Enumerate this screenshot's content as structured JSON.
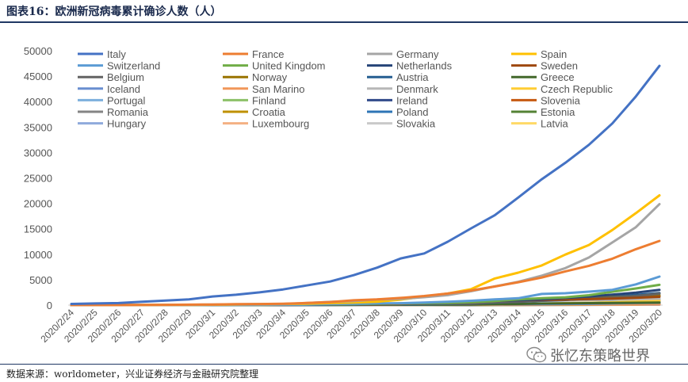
{
  "figure_title": "图表16：欧洲新冠病毒累计确诊人数（人）",
  "source": "数据来源：worldometer，兴业证券经济与金融研究院整理",
  "watermark": "张忆东策略世界",
  "chart_data": {
    "type": "line",
    "title": "",
    "xlabel": "",
    "ylabel": "",
    "ylim": [
      0,
      50000
    ],
    "yticks": [
      "0",
      "5000",
      "10000",
      "15000",
      "20000",
      "25000",
      "30000",
      "35000",
      "40000",
      "45000",
      "50000"
    ],
    "grid": false,
    "legend_position": "top",
    "x": [
      "2020/2/24",
      "2020/2/25",
      "2020/2/26",
      "2020/2/27",
      "2020/2/28",
      "2020/2/29",
      "2020/3/1",
      "2020/3/2",
      "2020/3/3",
      "2020/3/4",
      "2020/3/5",
      "2020/3/6",
      "2020/3/7",
      "2020/3/8",
      "2020/3/9",
      "2020/3/10",
      "2020/3/11",
      "2020/3/12",
      "2020/3/13",
      "2020/3/14",
      "2020/3/15",
      "2020/3/16",
      "2020/3/17",
      "2020/3/18",
      "2020/3/19",
      "2020/3/20"
    ],
    "series": [
      {
        "name": "Italy",
        "color": "#4472C4",
        "values": [
          229,
          322,
          400,
          650,
          888,
          1128,
          1694,
          2036,
          2502,
          3089,
          3858,
          4636,
          5883,
          7375,
          9172,
          10149,
          12462,
          15113,
          17660,
          21157,
          24747,
          27980,
          31506,
          35713,
          41035,
          47021
        ]
      },
      {
        "name": "France",
        "color": "#ED7D31",
        "values": [
          12,
          12,
          17,
          38,
          57,
          100,
          130,
          191,
          212,
          285,
          423,
          613,
          949,
          1126,
          1412,
          1784,
          2281,
          2876,
          3661,
          4499,
          5423,
          6633,
          7730,
          9134,
          10995,
          12612
        ]
      },
      {
        "name": "Germany",
        "color": "#A5A5A5",
        "values": [
          16,
          16,
          21,
          26,
          53,
          66,
          117,
          150,
          188,
          240,
          400,
          639,
          795,
          1112,
          1224,
          1565,
          1966,
          2745,
          3675,
          4585,
          5795,
          7272,
          9367,
          12327,
          15320,
          19848
        ]
      },
      {
        "name": "Spain",
        "color": "#FFC000",
        "values": [
          2,
          6,
          13,
          15,
          32,
          45,
          84,
          120,
          165,
          222,
          259,
          400,
          500,
          673,
          1073,
          1695,
          2277,
          3146,
          5232,
          6391,
          7798,
          9942,
          11826,
          14769,
          18077,
          21571
        ]
      },
      {
        "name": "Switzerland",
        "color": "#5B9BD5",
        "values": [
          0,
          1,
          1,
          8,
          8,
          18,
          27,
          42,
          56,
          90,
          114,
          214,
          268,
          337,
          374,
          491,
          652,
          858,
          1125,
          1359,
          2200,
          2330,
          2650,
          3010,
          4075,
          5615
        ]
      },
      {
        "name": "United Kingdom",
        "color": "#70AD47",
        "values": [
          13,
          13,
          13,
          15,
          20,
          23,
          36,
          40,
          51,
          85,
          115,
          163,
          206,
          273,
          321,
          382,
          456,
          590,
          798,
          1140,
          1372,
          1543,
          1950,
          2626,
          3269,
          3983
        ]
      },
      {
        "name": "Netherlands",
        "color": "#264478",
        "values": [
          0,
          0,
          0,
          1,
          1,
          6,
          10,
          18,
          24,
          38,
          82,
          128,
          188,
          265,
          321,
          382,
          503,
          614,
          804,
          959,
          1135,
          1413,
          1705,
          2051,
          2460,
          2994
        ]
      },
      {
        "name": "Sweden",
        "color": "#9E480E",
        "values": [
          0,
          0,
          1,
          1,
          7,
          12,
          14,
          15,
          30,
          52,
          94,
          137,
          161,
          203,
          248,
          355,
          500,
          599,
          814,
          961,
          1022,
          1103,
          1190,
          1279,
          1439,
          1639
        ]
      },
      {
        "name": "Belgium",
        "color": "#636363",
        "values": [
          1,
          1,
          1,
          1,
          1,
          1,
          2,
          8,
          13,
          23,
          50,
          109,
          169,
          200,
          239,
          267,
          314,
          314,
          559,
          689,
          886,
          1058,
          1243,
          1486,
          1795,
          2257
        ]
      },
      {
        "name": "Norway",
        "color": "#997300",
        "values": [
          0,
          0,
          1,
          1,
          6,
          15,
          19,
          25,
          32,
          56,
          87,
          108,
          147,
          176,
          205,
          400,
          598,
          702,
          996,
          1090,
          1221,
          1333,
          1463,
          1550,
          1746,
          1914
        ]
      },
      {
        "name": "Austria",
        "color": "#255E91",
        "values": [
          0,
          2,
          2,
          3,
          3,
          9,
          14,
          18,
          21,
          29,
          41,
          55,
          79,
          104,
          131,
          182,
          246,
          302,
          504,
          655,
          860,
          1018,
          1332,
          1646,
          2013,
          2388
        ]
      },
      {
        "name": "Greece",
        "color": "#43682B",
        "values": [
          0,
          0,
          1,
          3,
          4,
          7,
          7,
          7,
          7,
          9,
          31,
          45,
          66,
          73,
          84,
          89,
          99,
          117,
          190,
          228,
          331,
          352,
          387,
          418,
          464,
          495
        ]
      },
      {
        "name": "Iceland",
        "color": "#698ED0",
        "values": [
          0,
          0,
          0,
          0,
          1,
          1,
          6,
          11,
          16,
          26,
          37,
          45,
          50,
          60,
          69,
          85,
          103,
          134,
          156,
          171,
          180,
          220,
          250,
          330,
          409,
          473
        ]
      },
      {
        "name": "San Marino",
        "color": "#F1975A",
        "values": [
          0,
          0,
          0,
          1,
          1,
          1,
          1,
          8,
          10,
          16,
          21,
          23,
          36,
          36,
          51,
          62,
          69,
          80,
          80,
          101,
          109,
          109,
          119,
          119,
          144,
          144
        ]
      },
      {
        "name": "Denmark",
        "color": "#B7B7B7",
        "values": [
          0,
          0,
          0,
          1,
          1,
          1,
          3,
          4,
          6,
          10,
          15,
          23,
          31,
          35,
          90,
          262,
          442,
          615,
          801,
          827,
          864,
          914,
          977,
          1057,
          1151,
          1255
        ]
      },
      {
        "name": "Czech Republic",
        "color": "#FFCD33",
        "values": [
          0,
          0,
          0,
          0,
          0,
          0,
          3,
          3,
          5,
          5,
          8,
          19,
          26,
          32,
          38,
          63,
          94,
          116,
          141,
          189,
          298,
          383,
          450,
          560,
          765,
          889
        ]
      },
      {
        "name": "Portugal",
        "color": "#7CAFDD",
        "values": [
          0,
          0,
          0,
          0,
          0,
          0,
          0,
          2,
          4,
          6,
          9,
          13,
          21,
          30,
          39,
          41,
          59,
          78,
          112,
          169,
          245,
          331,
          448,
          642,
          785,
          1020
        ]
      },
      {
        "name": "Finland",
        "color": "#8CC168",
        "values": [
          0,
          0,
          1,
          2,
          2,
          3,
          6,
          6,
          7,
          7,
          12,
          15,
          19,
          23,
          30,
          40,
          59,
          109,
          155,
          225,
          244,
          277,
          319,
          400,
          450,
          521
        ]
      },
      {
        "name": "Ireland",
        "color": "#314A8A",
        "values": [
          0,
          0,
          0,
          0,
          1,
          1,
          1,
          1,
          2,
          6,
          13,
          18,
          19,
          21,
          24,
          34,
          43,
          70,
          90,
          129,
          169,
          223,
          292,
          557,
          683,
          785
        ]
      },
      {
        "name": "Slovenia",
        "color": "#C65911",
        "values": [
          0,
          0,
          0,
          0,
          0,
          0,
          0,
          0,
          0,
          1,
          6,
          8,
          12,
          16,
          25,
          34,
          57,
          89,
          141,
          181,
          219,
          253,
          275,
          286,
          341,
          383
        ]
      },
      {
        "name": "Romania",
        "color": "#848484",
        "values": [
          0,
          0,
          1,
          1,
          3,
          3,
          3,
          3,
          4,
          4,
          6,
          9,
          9,
          15,
          15,
          25,
          45,
          49,
          89,
          123,
          131,
          158,
          184,
          260,
          277,
          308
        ]
      },
      {
        "name": "Croatia",
        "color": "#BF9000",
        "values": [
          0,
          1,
          3,
          3,
          5,
          7,
          7,
          7,
          9,
          10,
          11,
          12,
          12,
          12,
          12,
          16,
          19,
          32,
          38,
          49,
          57,
          65,
          81,
          105,
          128,
          206
        ]
      },
      {
        "name": "Poland",
        "color": "#2E75B6",
        "values": [
          0,
          0,
          0,
          0,
          0,
          0,
          0,
          0,
          0,
          1,
          1,
          5,
          6,
          11,
          17,
          22,
          31,
          51,
          68,
          103,
          119,
          177,
          238,
          251,
          355,
          425
        ]
      },
      {
        "name": "Estonia",
        "color": "#548235",
        "values": [
          0,
          0,
          0,
          1,
          1,
          1,
          1,
          1,
          2,
          3,
          10,
          10,
          10,
          10,
          10,
          13,
          16,
          27,
          79,
          115,
          171,
          205,
          225,
          258,
          267,
          283
        ]
      },
      {
        "name": "Hungary",
        "color": "#8FAADC",
        "values": [
          0,
          0,
          0,
          0,
          0,
          0,
          0,
          0,
          0,
          2,
          2,
          4,
          7,
          7,
          9,
          9,
          13,
          16,
          19,
          30,
          32,
          39,
          50,
          58,
          73,
          85
        ]
      },
      {
        "name": "Luxembourg",
        "color": "#F4B183",
        "values": [
          0,
          0,
          0,
          0,
          0,
          1,
          1,
          1,
          1,
          1,
          2,
          3,
          4,
          5,
          5,
          7,
          7,
          26,
          34,
          51,
          59,
          81,
          140,
          203,
          335,
          484
        ]
      },
      {
        "name": "Slovakia",
        "color": "#C9C9C9",
        "values": [
          0,
          0,
          0,
          0,
          0,
          0,
          0,
          0,
          0,
          0,
          0,
          1,
          3,
          5,
          7,
          7,
          10,
          21,
          32,
          44,
          61,
          72,
          97,
          105,
          123,
          137
        ]
      },
      {
        "name": "Latvia",
        "color": "#FFD966",
        "values": [
          0,
          0,
          0,
          0,
          0,
          0,
          0,
          1,
          1,
          1,
          1,
          2,
          2,
          8,
          10,
          16,
          17,
          26,
          30,
          34,
          49,
          71,
          86,
          111,
          124,
          139
        ]
      }
    ]
  }
}
